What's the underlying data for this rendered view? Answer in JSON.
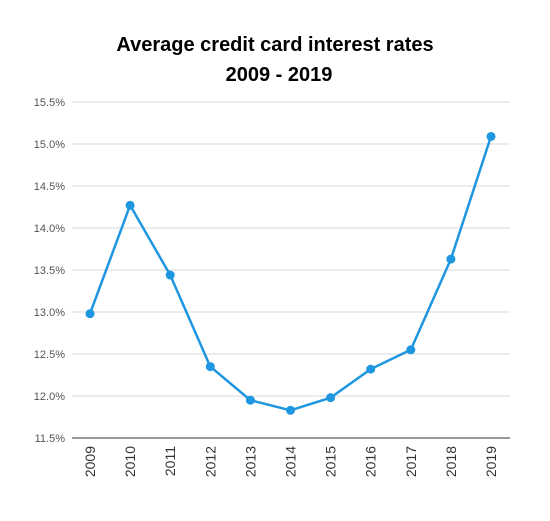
{
  "chart_data": {
    "type": "line",
    "title": "Average credit card interest rates",
    "subtitle": "2009 - 2019",
    "xlabel": "",
    "ylabel": "",
    "categories": [
      "2009",
      "2010",
      "2011",
      "2012",
      "2013",
      "2014",
      "2015",
      "2016",
      "2017",
      "2018",
      "2019"
    ],
    "series": [
      {
        "values": [
          12.98,
          14.27,
          13.44,
          12.35,
          11.95,
          11.83,
          11.98,
          12.32,
          12.55,
          13.63,
          15.09
        ]
      }
    ],
    "ylim": [
      11.5,
      15.5
    ],
    "yticks": [
      11.5,
      12.0,
      12.5,
      13.0,
      13.5,
      14.0,
      14.5,
      15.0,
      15.5
    ],
    "ytick_labels": [
      "11.5%",
      "12.0%",
      "12.5%",
      "13.0%",
      "13.5%",
      "14.0%",
      "14.5%",
      "15.0%",
      "15.5%"
    ],
    "grid": true,
    "legend": "none",
    "colors": {
      "line": "#1f96e0",
      "grid": "#d9d9d9",
      "axis": "#333333"
    }
  }
}
